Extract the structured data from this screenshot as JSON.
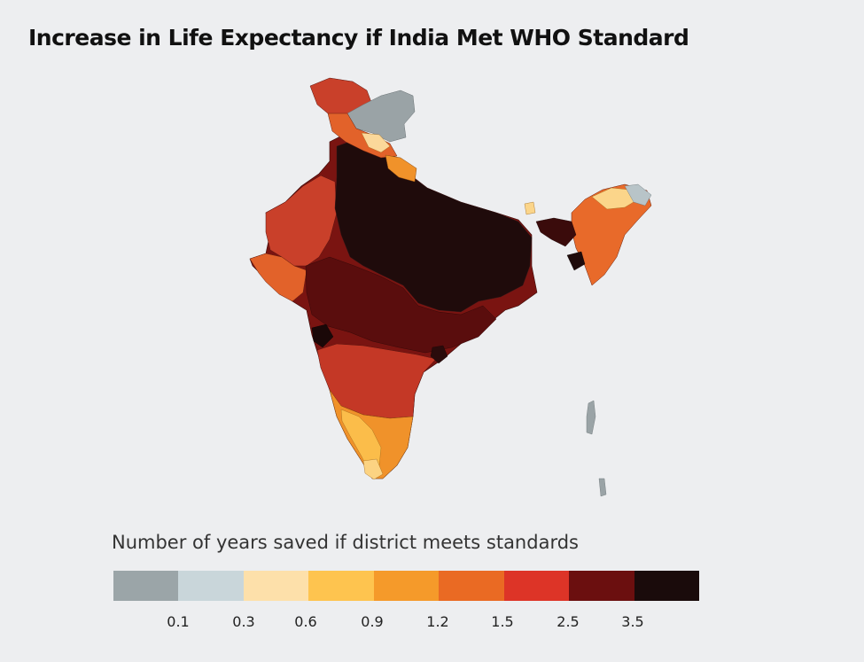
{
  "title": "Increase in Life Expectancy if India Met WHO Standard",
  "legend": {
    "title": "Number of years saved if district meets standards",
    "colors": [
      "#9ba5a8",
      "#c9d6da",
      "#fde0aa",
      "#fec44f",
      "#f59a2a",
      "#ea6a23",
      "#dd3427",
      "#6b0f0f",
      "#1a0b0b"
    ],
    "ticks": [
      "0.1",
      "0.3",
      "0.6",
      "0.9",
      "1.2",
      "1.5",
      "2.5",
      "3.5"
    ]
  },
  "map": {
    "region": "India districts",
    "color_scale": "years of life expectancy gained"
  }
}
